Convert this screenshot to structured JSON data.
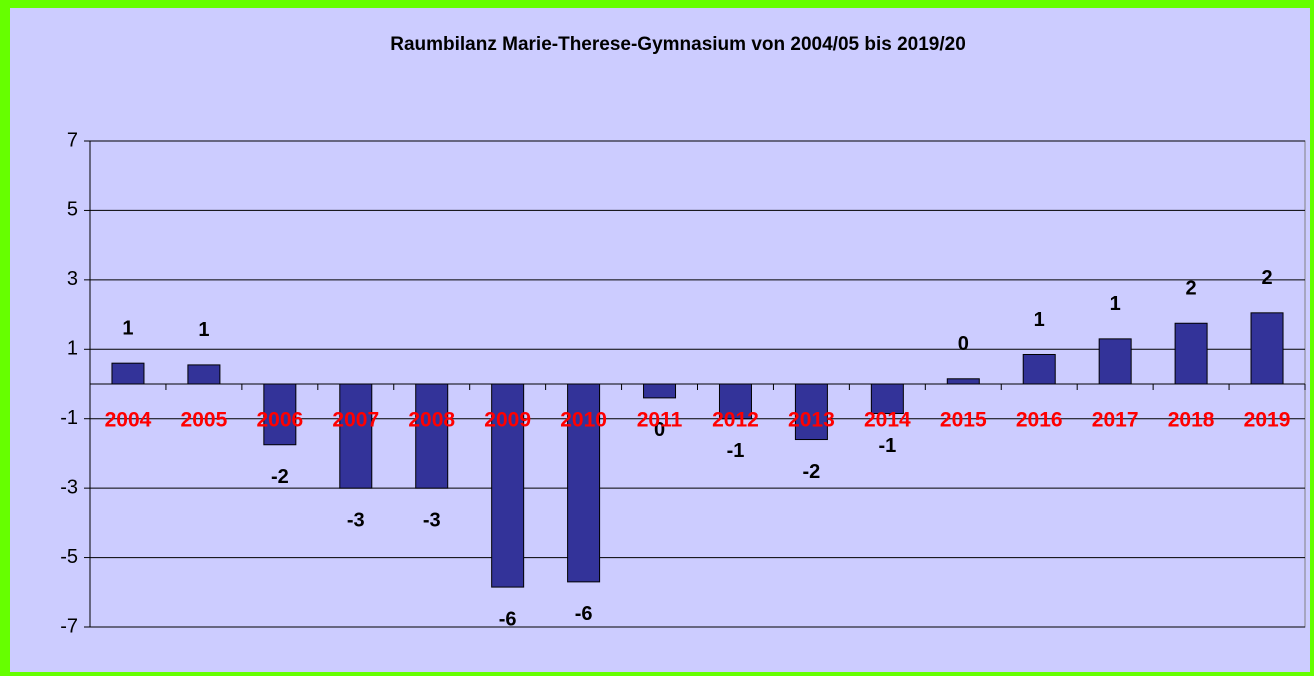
{
  "chart_data": {
    "type": "bar",
    "title": "Raumbilanz Marie-Therese-Gymnasium von 2004/05 bis 2019/20",
    "categories": [
      "2004",
      "2005",
      "2006",
      "2007",
      "2008",
      "2009",
      "2010",
      "2011",
      "2012",
      "2013",
      "2014",
      "2015",
      "2016",
      "2017",
      "2018",
      "2019"
    ],
    "values": [
      0.6,
      0.55,
      -1.75,
      -3,
      -3,
      -5.85,
      -5.7,
      -0.4,
      -1.0,
      -1.6,
      -0.85,
      0.15,
      0.85,
      1.3,
      1.75,
      2.05
    ],
    "value_labels": [
      "1",
      "1",
      "-2",
      "-3",
      "-3",
      "-6",
      "-6",
      "0",
      "-1",
      "-2",
      "-1",
      "0",
      "1",
      "1",
      "2",
      "2"
    ],
    "color": "#333399",
    "ylim": [
      -7,
      7
    ],
    "yticks": [
      7,
      5,
      3,
      1,
      -1,
      -3,
      -5,
      -7
    ],
    "grid": true
  }
}
